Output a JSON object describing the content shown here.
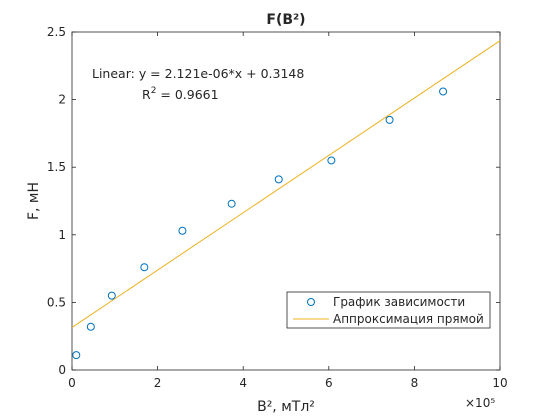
{
  "chart_data": {
    "type": "scatter",
    "title": "F(B²)",
    "xlabel": "B², мТл²",
    "ylabel": "F, мН",
    "x_exponent_label": "×10⁵",
    "xlim": [
      0,
      10
    ],
    "ylim": [
      0,
      2.5
    ],
    "x_ticks": [
      0,
      2,
      4,
      6,
      8,
      10
    ],
    "y_ticks": [
      0,
      0.5,
      1,
      1.5,
      2,
      2.5
    ],
    "x_tick_labels": [
      "0",
      "2",
      "4",
      "6",
      "8",
      "10"
    ],
    "y_tick_labels": [
      "0",
      "0.5",
      "1",
      "1.5",
      "2",
      "2.5"
    ],
    "grid": false,
    "legend_position": "bottom-right",
    "series": [
      {
        "name": "График зависимости",
        "kind": "scatter",
        "marker": "circle",
        "color": "#0072BD",
        "x": [
          0.1,
          0.44,
          0.93,
          1.69,
          2.58,
          3.73,
          4.83,
          6.06,
          7.42,
          8.67
        ],
        "y": [
          0.11,
          0.32,
          0.55,
          0.76,
          1.03,
          1.23,
          1.41,
          1.55,
          1.85,
          2.06
        ]
      },
      {
        "name": "Аппроксимация прямой",
        "kind": "line",
        "color": "#EDB120",
        "slope_per_1e5": 0.2121,
        "intercept": 0.3148,
        "x": [
          0,
          10
        ],
        "y": [
          0.3148,
          2.4358
        ]
      }
    ],
    "annotations": {
      "fit_equation": "Linear:  y = 2.121e-06*x + 0.3148",
      "r2_label": "R",
      "r2_sup": "2",
      "r2_value": " = 0.9661"
    }
  }
}
